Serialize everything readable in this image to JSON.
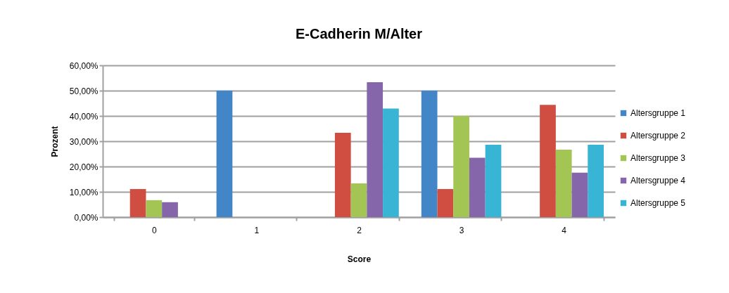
{
  "chart_data": {
    "type": "bar",
    "title": "E-Cadherin M/Alter",
    "xlabel": "Score",
    "ylabel": "Prozent",
    "categories": [
      "0",
      "1",
      "2",
      "3",
      "4"
    ],
    "series": [
      {
        "name": "Altersgruppe 1",
        "color": "#4386c8",
        "values": [
          null,
          50,
          null,
          50,
          null
        ]
      },
      {
        "name": "Altersgruppe 2",
        "color": "#d04d42",
        "values": [
          11.1,
          null,
          33.3,
          11.1,
          44.4
        ]
      },
      {
        "name": "Altersgruppe 3",
        "color": "#a3c553",
        "values": [
          6.7,
          null,
          13.3,
          40,
          26.7
        ]
      },
      {
        "name": "Altersgruppe 4",
        "color": "#8566aa",
        "values": [
          5.9,
          null,
          53.3,
          23.5,
          17.6
        ]
      },
      {
        "name": "Altersgruppe 5",
        "color": "#38b4d4",
        "values": [
          null,
          null,
          42.9,
          28.6,
          28.6
        ]
      }
    ],
    "ylim": [
      0,
      60
    ],
    "yticks": [
      {
        "value": 0,
        "label": "0,00%"
      },
      {
        "value": 10,
        "label": "10,00%"
      },
      {
        "value": 20,
        "label": "20,00%"
      },
      {
        "value": 30,
        "label": "30,00%"
      },
      {
        "value": 40,
        "label": "40,00%"
      },
      {
        "value": 50,
        "label": "50,00%"
      },
      {
        "value": 60,
        "label": "60,00%"
      }
    ],
    "grid": "y",
    "legend": "right"
  }
}
